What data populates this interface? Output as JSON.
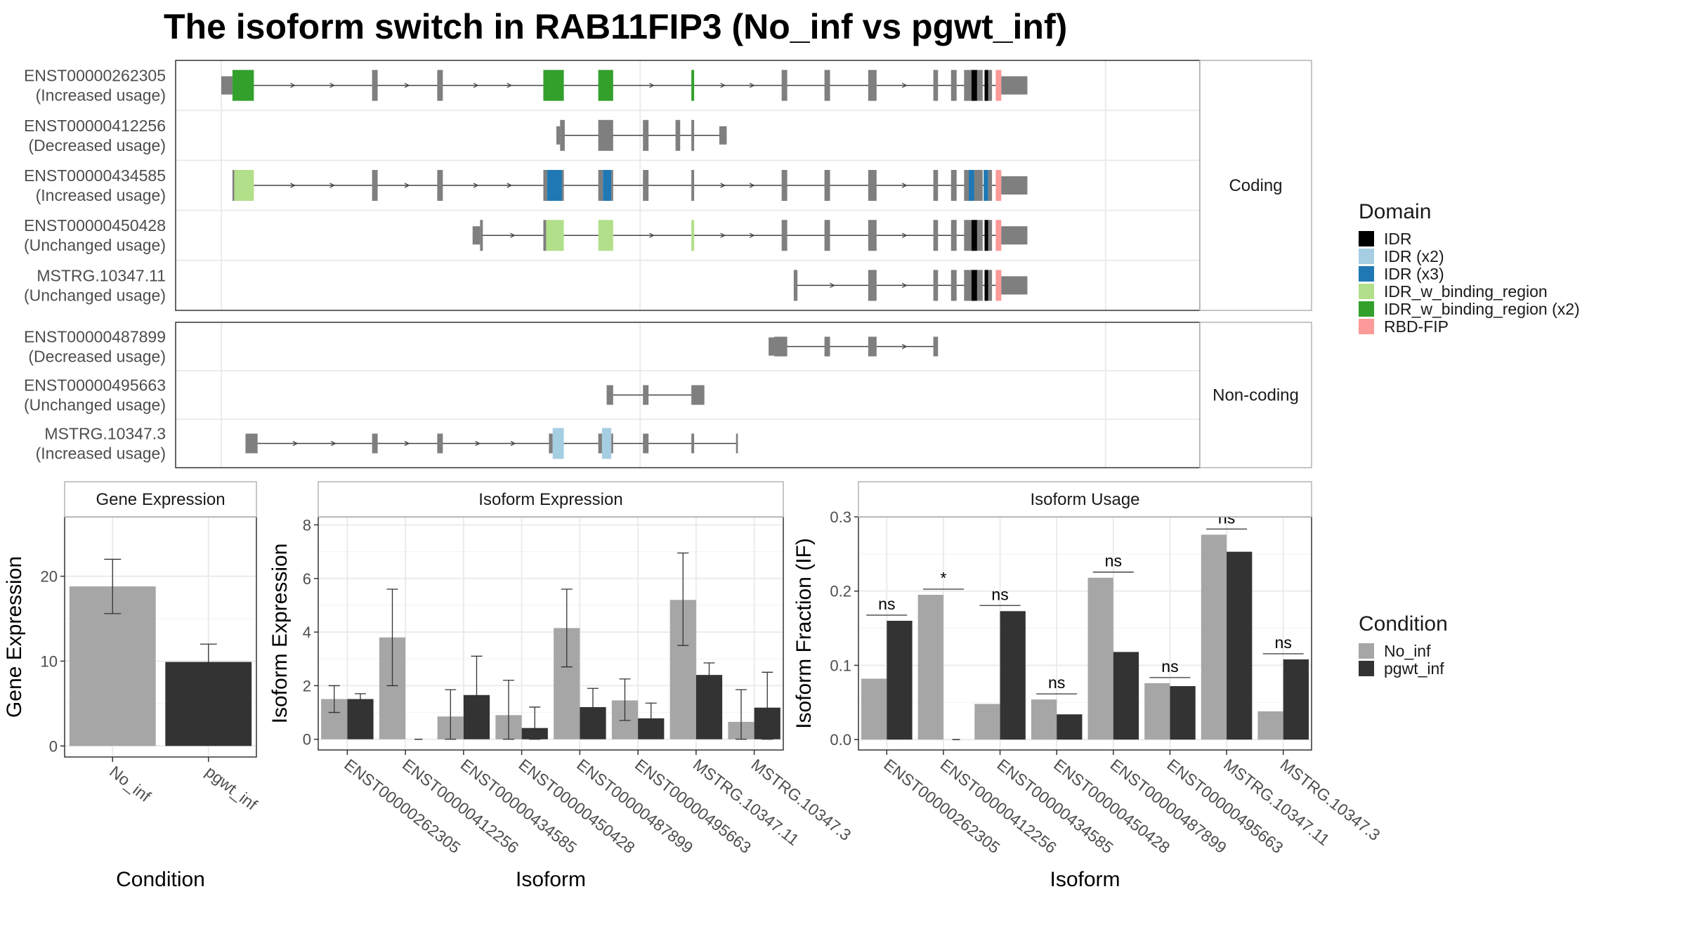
{
  "title": "The isoform switch in RAB11FIP3 (No_inf vs pgwt_inf)",
  "colors": {
    "intron_gray": "#7f7f7f",
    "grid": "#ebebeb",
    "panel_border": "#333333",
    "strip_border": "#b3b3b3",
    "no_inf": "#a6a6a6",
    "pgwt_inf": "#333333",
    "text": "#1a1a1a",
    "tick_text": "#4d4d4d"
  },
  "structure": {
    "coding_label": "Coding",
    "noncoding_label": "Non-coding",
    "coding": [
      {
        "id": "ENST00000262305",
        "usage": "(Increased usage)",
        "range": [
          0.5,
          100
        ],
        "exons": [
          [
            0,
            1.2,
            "thin"
          ],
          [
            1.2,
            3.5,
            "IDR_w_binding_region (x2)"
          ],
          [
            16.2,
            16.8,
            "cds"
          ],
          [
            23.2,
            23.8,
            "cds"
          ],
          [
            34.6,
            36.8,
            "IDR_w_binding_region (x2)"
          ],
          [
            40.5,
            42.1,
            "IDR_w_binding_region (x2)"
          ],
          [
            50.5,
            50.8,
            "IDR_w_binding_region (x2)"
          ],
          [
            60.2,
            60.8,
            "cds"
          ],
          [
            64.8,
            65.4,
            "cds"
          ],
          [
            69.5,
            70.4,
            "cds"
          ],
          [
            76.5,
            77,
            "cds"
          ],
          [
            78.4,
            79,
            "cds"
          ],
          [
            79.8,
            80.6,
            "cds"
          ],
          [
            80.6,
            81.2,
            "IDR"
          ],
          [
            81.2,
            81.8,
            "cds"
          ],
          [
            82,
            82.4,
            "IDR"
          ],
          [
            82.4,
            82.8,
            "cds"
          ],
          [
            83.2,
            83.8,
            "RBD-FIP"
          ],
          [
            83.8,
            86.6,
            "thin"
          ]
        ]
      },
      {
        "id": "ENST00000412256",
        "usage": "(Decreased usage)",
        "range": [
          36,
          53.5
        ],
        "exons": [
          [
            36,
            36.4,
            "thin"
          ],
          [
            36.4,
            36.9,
            "cds"
          ],
          [
            40.5,
            42.1,
            "cds"
          ],
          [
            45.3,
            45.9,
            "cds"
          ],
          [
            48.8,
            49.3,
            "cds"
          ],
          [
            50.5,
            50.8,
            "cds"
          ],
          [
            53.5,
            54.3,
            "thin"
          ]
        ]
      },
      {
        "id": "ENST00000434585",
        "usage": "(Increased usage)",
        "range": [
          1.2,
          100
        ],
        "exons": [
          [
            1.2,
            1.4,
            "cds"
          ],
          [
            1.4,
            3.5,
            "IDR_w_binding_region"
          ],
          [
            16.2,
            16.8,
            "cds"
          ],
          [
            23.2,
            23.8,
            "cds"
          ],
          [
            34.6,
            35,
            "cds"
          ],
          [
            35,
            36.6,
            "IDR (x3)"
          ],
          [
            36.6,
            36.8,
            "cds"
          ],
          [
            40.5,
            41,
            "cds"
          ],
          [
            41,
            41.9,
            "IDR (x3)"
          ],
          [
            41.9,
            42.1,
            "cds"
          ],
          [
            45.3,
            45.9,
            "cds"
          ],
          [
            50.5,
            50.8,
            "cds"
          ],
          [
            60.2,
            60.8,
            "cds"
          ],
          [
            64.8,
            65.4,
            "cds"
          ],
          [
            69.5,
            70.4,
            "cds"
          ],
          [
            76.5,
            77,
            "cds"
          ],
          [
            78.4,
            79,
            "cds"
          ],
          [
            79.8,
            80.3,
            "cds"
          ],
          [
            80.3,
            80.9,
            "IDR (x3)"
          ],
          [
            80.9,
            81.8,
            "cds"
          ],
          [
            81.9,
            82.4,
            "IDR (x3)"
          ],
          [
            82.4,
            82.8,
            "cds"
          ],
          [
            83.2,
            83.8,
            "RBD-FIP"
          ],
          [
            83.8,
            86.6,
            "thin"
          ]
        ]
      },
      {
        "id": "ENST00000450428",
        "usage": "(Unchanged usage)",
        "range": [
          27,
          100
        ],
        "exons": [
          [
            27,
            27.8,
            "thin"
          ],
          [
            27.8,
            28.1,
            "cds"
          ],
          [
            34.6,
            34.9,
            "cds"
          ],
          [
            34.9,
            36.8,
            "IDR_w_binding_region"
          ],
          [
            40.5,
            42.1,
            "IDR_w_binding_region"
          ],
          [
            50.5,
            50.8,
            "IDR_w_binding_region"
          ],
          [
            60.2,
            60.8,
            "cds"
          ],
          [
            64.8,
            65.4,
            "cds"
          ],
          [
            69.5,
            70.4,
            "cds"
          ],
          [
            76.5,
            77,
            "cds"
          ],
          [
            78.4,
            79,
            "cds"
          ],
          [
            79.8,
            80.6,
            "cds"
          ],
          [
            80.6,
            81.2,
            "IDR"
          ],
          [
            81.2,
            81.8,
            "cds"
          ],
          [
            82,
            82.4,
            "IDR"
          ],
          [
            82.4,
            82.8,
            "cds"
          ],
          [
            83.2,
            83.8,
            "RBD-FIP"
          ],
          [
            83.8,
            86.6,
            "thin"
          ]
        ]
      },
      {
        "id": "MSTRG.10347.11",
        "usage": "(Unchanged usage)",
        "range": [
          61.5,
          100
        ],
        "exons": [
          [
            61.5,
            61.9,
            "cds"
          ],
          [
            69.5,
            70,
            "cds"
          ],
          [
            70,
            70.4,
            "cds"
          ],
          [
            76.5,
            77,
            "cds"
          ],
          [
            78.4,
            79,
            "cds"
          ],
          [
            79.8,
            80.6,
            "cds"
          ],
          [
            80.6,
            81.2,
            "IDR"
          ],
          [
            81.2,
            81.8,
            "cds"
          ],
          [
            82,
            82.4,
            "IDR"
          ],
          [
            82.4,
            82.8,
            "cds"
          ],
          [
            83.2,
            83.8,
            "RBD-FIP"
          ],
          [
            83.8,
            86.6,
            "thin"
          ]
        ]
      }
    ],
    "noncoding": [
      {
        "id": "ENST00000487899",
        "usage": "(Decreased usage)",
        "range": [
          58.8,
          77
        ],
        "exons": [
          [
            58.8,
            59.4,
            "thin"
          ],
          [
            59.4,
            60.8,
            "nc"
          ],
          [
            64.8,
            65.4,
            "nc"
          ],
          [
            69.5,
            70.4,
            "nc"
          ],
          [
            76.5,
            77,
            "nc"
          ]
        ]
      },
      {
        "id": "ENST00000495663",
        "usage": "(Unchanged usage)",
        "range": [
          41.4,
          51
        ],
        "exons": [
          [
            41.4,
            42.1,
            "nc"
          ],
          [
            45.3,
            45.9,
            "nc"
          ],
          [
            50.5,
            51.9,
            "nc"
          ]
        ]
      },
      {
        "id": "MSTRG.10347.3",
        "usage": "(Increased usage)",
        "range": [
          2.6,
          55.5
        ],
        "exons": [
          [
            2.6,
            3.9,
            "nc"
          ],
          [
            16.2,
            16.8,
            "nc"
          ],
          [
            23.2,
            23.8,
            "nc"
          ],
          [
            35.2,
            35.6,
            "nc"
          ],
          [
            35.6,
            36.8,
            "IDR (x2)"
          ],
          [
            40.5,
            40.9,
            "nc"
          ],
          [
            40.9,
            41.9,
            "IDR (x2)"
          ],
          [
            41.9,
            42.1,
            "nc"
          ],
          [
            45.3,
            45.9,
            "nc"
          ],
          [
            50.5,
            50.8,
            "nc"
          ],
          [
            55.3,
            55.5,
            "nc"
          ]
        ]
      }
    ]
  },
  "legend_domain": {
    "title": "Domain",
    "items": [
      {
        "label": "IDR",
        "color": "#000000"
      },
      {
        "label": "IDR (x2)",
        "color": "#a6cee3"
      },
      {
        "label": "IDR (x3)",
        "color": "#1f78b4"
      },
      {
        "label": "IDR_w_binding_region",
        "color": "#b2df8a"
      },
      {
        "label": "IDR_w_binding_region (x2)",
        "color": "#33a02c"
      },
      {
        "label": "RBD-FIP",
        "color": "#fb9a99"
      }
    ]
  },
  "legend_condition": {
    "title": "Condition",
    "items": [
      {
        "label": "No_inf",
        "color": "#a6a6a6"
      },
      {
        "label": "pgwt_inf",
        "color": "#333333"
      }
    ]
  },
  "chart_data": [
    {
      "type": "bar",
      "title": "Gene Expression",
      "xlabel": "Condition",
      "ylabel": "Gene Expression",
      "ylim": [
        -1.3,
        27
      ],
      "yticks": [
        0,
        10,
        20
      ],
      "categories": [
        "No_inf",
        "pgwt_inf"
      ],
      "values": [
        18.8,
        9.9
      ],
      "err_low": [
        15.6,
        7.8
      ],
      "err_high": [
        22,
        12
      ]
    },
    {
      "type": "bar",
      "title": "Isoform Expression",
      "xlabel": "Isoform",
      "ylabel": "Isoform Expression",
      "ylim": [
        -0.4,
        8.3
      ],
      "yticks": [
        0,
        2,
        4,
        6,
        8
      ],
      "categories": [
        "ENST00000262305",
        "ENST00000412256",
        "ENST00000434585",
        "ENST00000450428",
        "ENST00000487899",
        "ENST00000495663",
        "MSTRG.10347.11",
        "MSTRG.10347.3"
      ],
      "series": [
        {
          "name": "No_inf",
          "values": [
            1.5,
            3.8,
            0.85,
            0.9,
            4.15,
            1.45,
            5.2,
            0.65
          ],
          "err_low": [
            1.0,
            2.0,
            0.0,
            0.0,
            2.7,
            0.7,
            3.5,
            0.0
          ],
          "err_high": [
            2.0,
            5.6,
            1.85,
            2.2,
            5.6,
            2.25,
            6.95,
            1.85
          ]
        },
        {
          "name": "pgwt_inf",
          "values": [
            1.5,
            0.0,
            1.65,
            0.42,
            1.2,
            0.78,
            2.4,
            1.18
          ],
          "err_low": [
            1.3,
            0.0,
            0.2,
            0.0,
            0.5,
            0.2,
            1.95,
            0.0
          ],
          "err_high": [
            1.7,
            0.0,
            3.1,
            1.2,
            1.9,
            1.35,
            2.85,
            2.5
          ]
        }
      ]
    },
    {
      "type": "bar",
      "title": "Isoform Usage",
      "xlabel": "Isoform",
      "ylabel": "Isoform Fraction (IF)",
      "ylim": [
        -0.014,
        0.3
      ],
      "yticks": [
        0.0,
        0.1,
        0.2,
        0.3
      ],
      "categories": [
        "ENST00000262305",
        "ENST00000412256",
        "ENST00000434585",
        "ENST00000450428",
        "ENST00000487899",
        "ENST00000495663",
        "MSTRG.10347.11",
        "MSTRG.10347.3"
      ],
      "series": [
        {
          "name": "No_inf",
          "values": [
            0.082,
            0.195,
            0.048,
            0.054,
            0.218,
            0.076,
            0.276,
            0.038
          ]
        },
        {
          "name": "pgwt_inf",
          "values": [
            0.16,
            0.0,
            0.173,
            0.034,
            0.118,
            0.072,
            0.253,
            0.108
          ]
        }
      ],
      "significance": [
        "ns",
        "*",
        "ns",
        "ns",
        "ns",
        "ns",
        "ns",
        "ns"
      ]
    }
  ]
}
